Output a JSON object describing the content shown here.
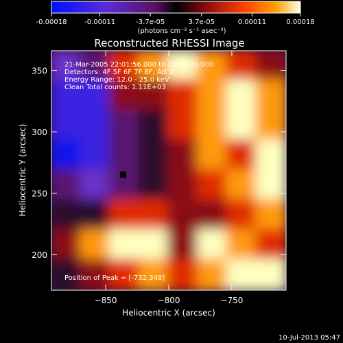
{
  "chart_data": {
    "type": "heatmap",
    "title": "Reconstructed RHESSI Image",
    "colorbar": {
      "ticks": [
        "-0.00018",
        "-0.00011",
        "-3.7e-05",
        "3.7e-05",
        "0.00011",
        "0.00018"
      ],
      "unit_label": "(photons cm⁻² s⁻¹ asec⁻²)",
      "range": [
        -0.00018,
        0.00018
      ]
    },
    "annotations": [
      "21-Mar-2005 22:01:56.000 to 22:03:20.000",
      "Detectors: 4F 5F 6F 7F 8F, Att 0",
      "Energy Range: 12.0 - 25.0 keV",
      "Clean     Total counts: 1.11E+03"
    ],
    "peak_label": "Position of Peak = [-732,348]",
    "peak_position": [
      -732,
      348
    ],
    "xlabel": "Heliocentric X (arcsec)",
    "ylabel": "Heliocentric Y (arcsec)",
    "xlim": [
      -893,
      -707
    ],
    "ylim": [
      171,
      366
    ],
    "xticks": [
      -850,
      -800,
      -750
    ],
    "yticks": [
      200,
      250,
      300,
      350
    ],
    "image_rows_top_to_bottom": [
      "23678765",
      "11556787",
      "11346787",
      "01345768",
      "32345678",
      "44665567",
      "57885876",
      "45676788"
    ]
  },
  "footer": {
    "date": "10-Jul-2013 05:47"
  }
}
